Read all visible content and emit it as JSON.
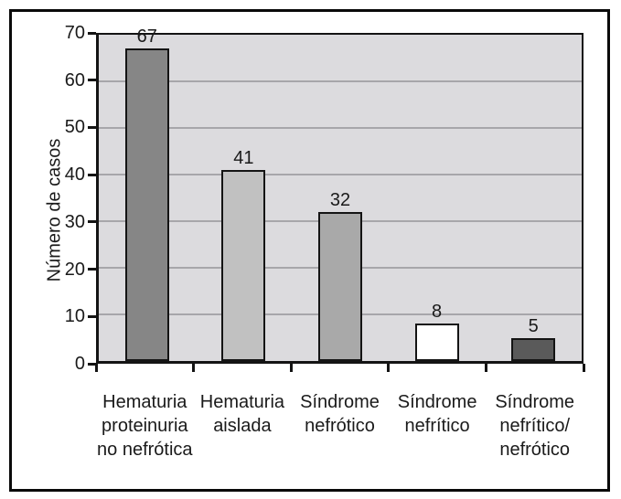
{
  "figure": {
    "background_color": "#ffffff",
    "border_color": "#0a0a0a",
    "plot_background_color": "#dcdbde",
    "gridline_color": "#a7a6aa",
    "axis_color": "#141414",
    "text_color": "#1a1a1a"
  },
  "chart_data": {
    "type": "bar",
    "title": "",
    "xlabel": "",
    "ylabel": "Número de casos",
    "ylim": [
      0,
      70
    ],
    "yticks": [
      0,
      10,
      20,
      30,
      40,
      50,
      60,
      70
    ],
    "grid": "horizontal gridlines every 10 units",
    "legend_position": "none",
    "categories": [
      "Hematuria proteinuria no nefrótica",
      "Hematuria aislada",
      "Síndrome nefrótico",
      "Síndrome nefrítico",
      "Síndrome nefrítico/nefrótico"
    ],
    "category_label_lines": [
      [
        "Hematuria",
        "proteinuria",
        "no nefrótica"
      ],
      [
        "Hematuria",
        "aislada"
      ],
      [
        "Síndrome",
        "nefrótico"
      ],
      [
        "Síndrome",
        "nefrítico"
      ],
      [
        "Síndrome",
        "nefrítico/",
        "nefrótico"
      ]
    ],
    "values": [
      67,
      41,
      32,
      8,
      5
    ],
    "value_labels": [
      "67",
      "41",
      "32",
      "8",
      "5"
    ],
    "bar_colors": [
      "#868686",
      "#c1c1c1",
      "#a9a9a9",
      "#ffffff",
      "#5a5a5a"
    ]
  }
}
